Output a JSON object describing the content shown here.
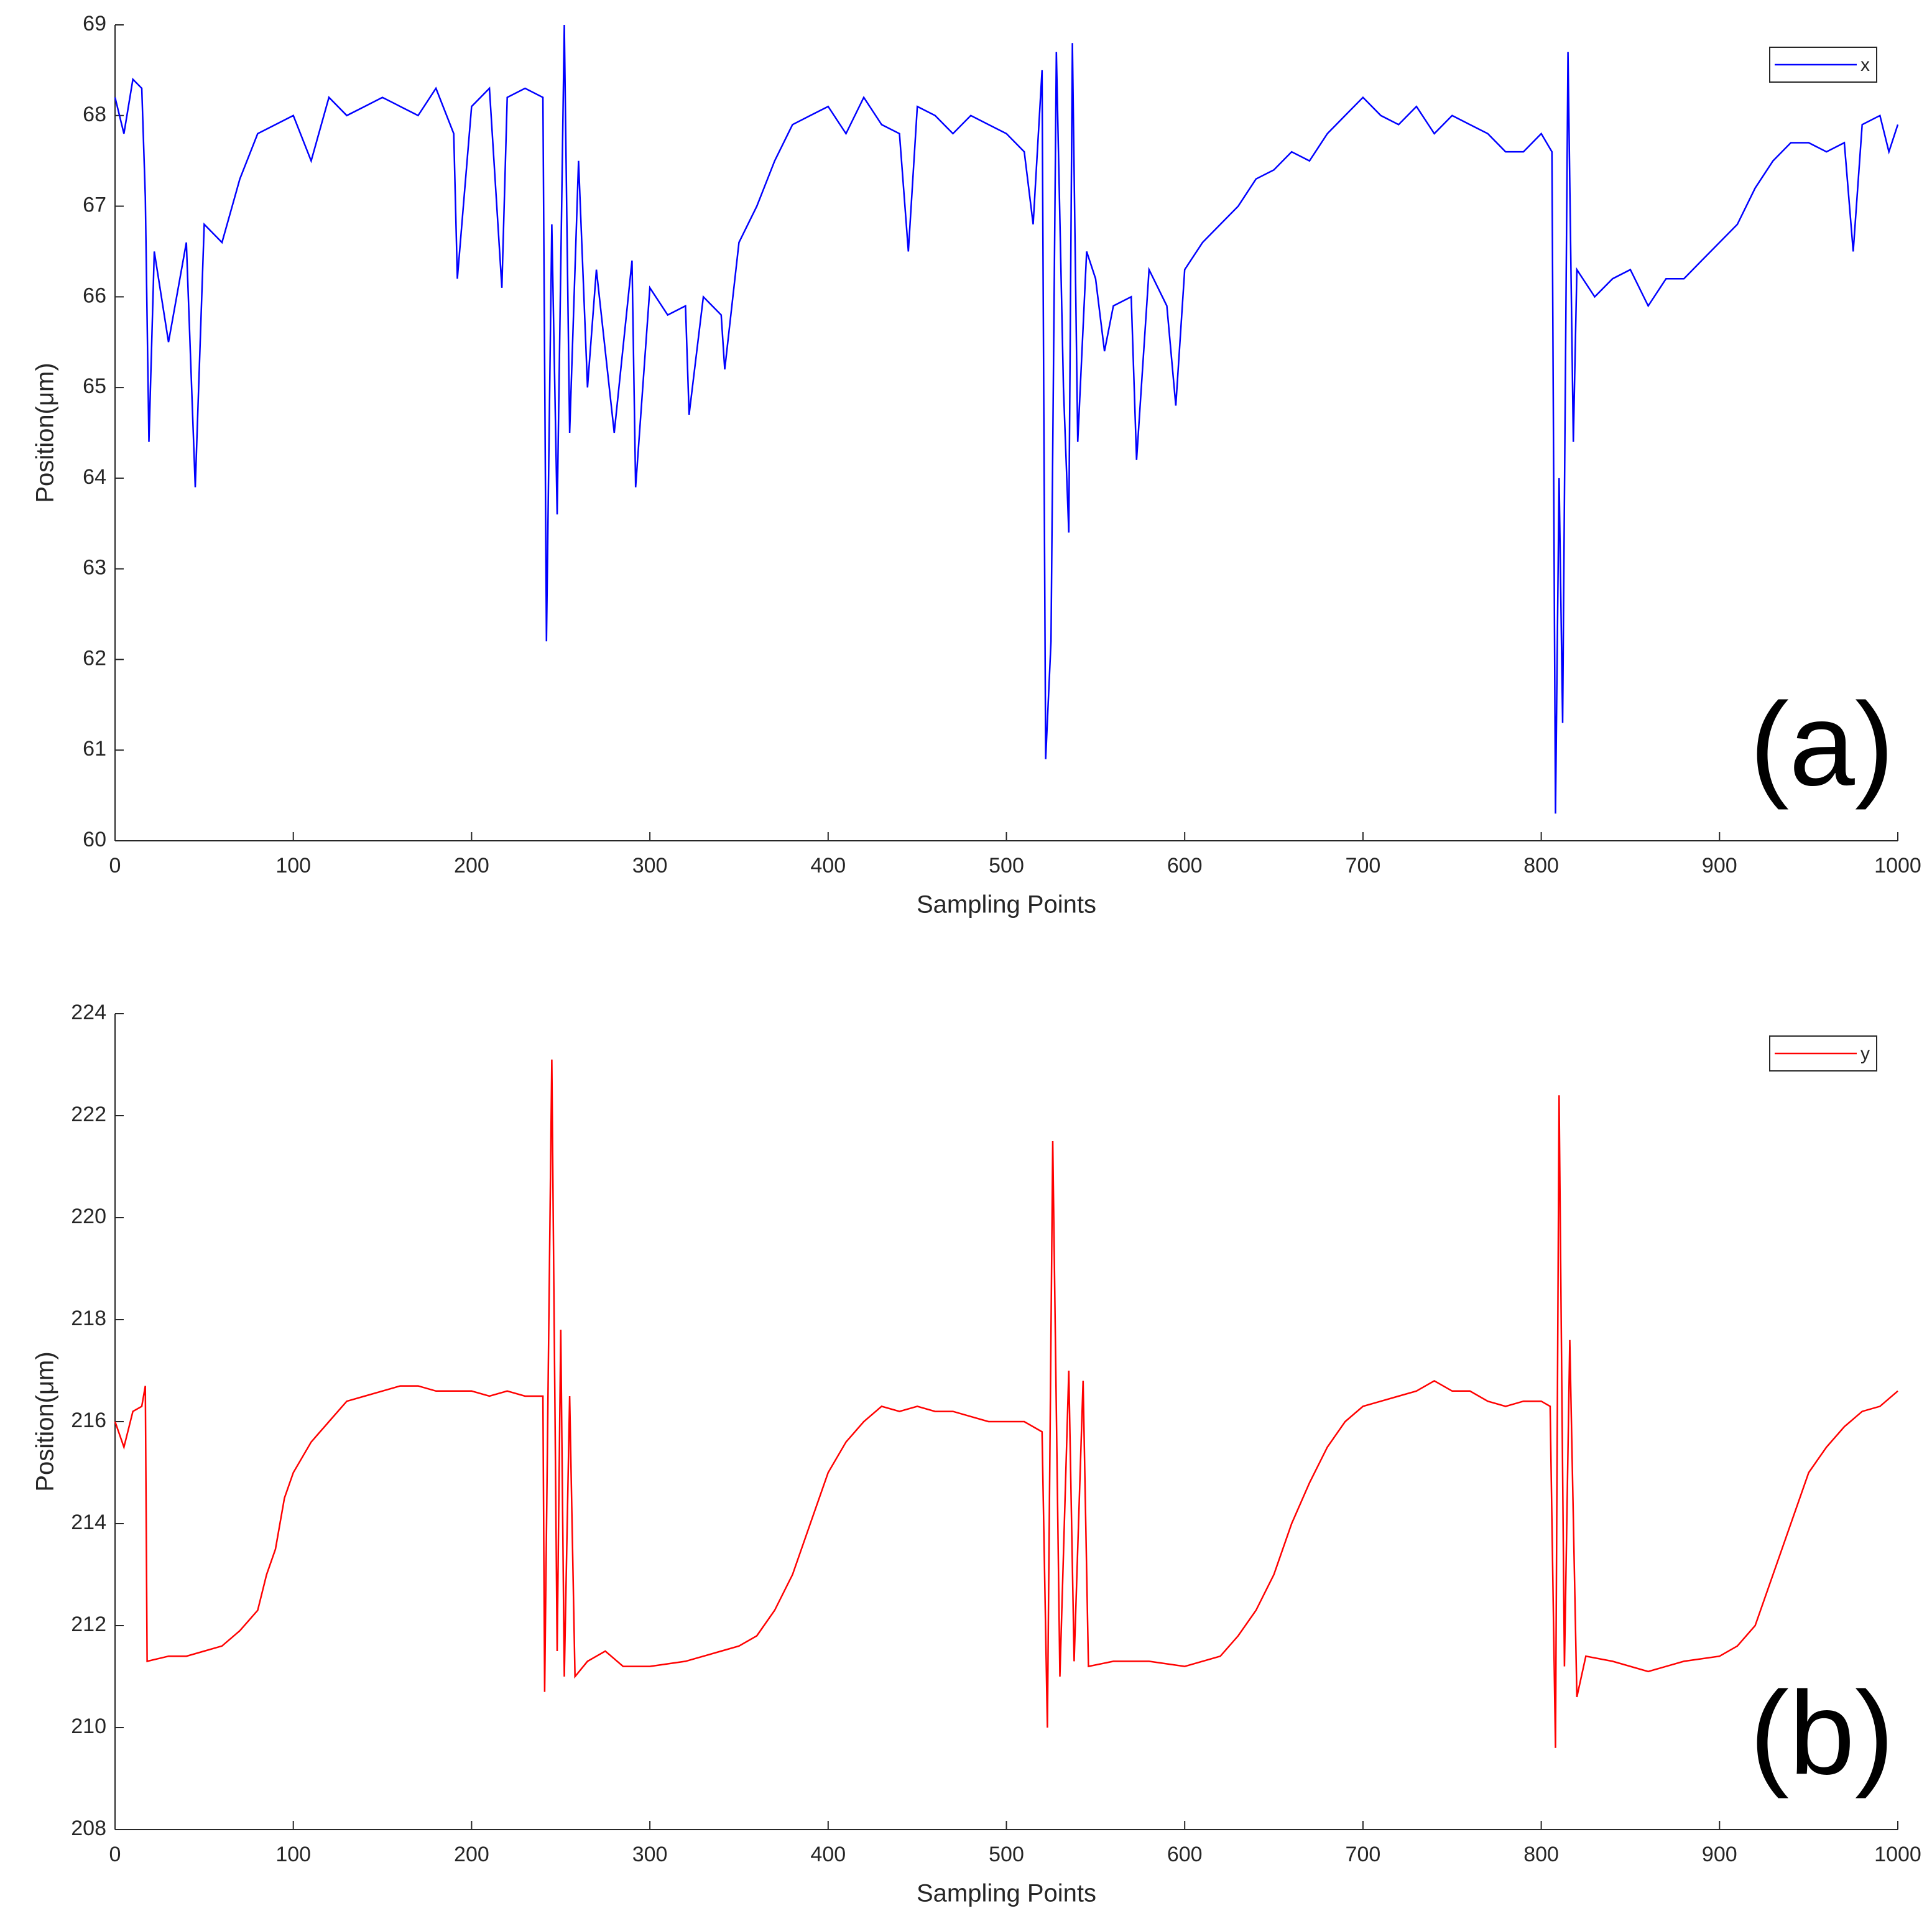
{
  "chart_data": [
    {
      "type": "line",
      "annotation": "(a)",
      "x_label": "Sampling Points",
      "y_label": "Position(μm)",
      "xlim": [
        0,
        1000
      ],
      "xticks": [
        0,
        100,
        200,
        300,
        400,
        500,
        600,
        700,
        800,
        900,
        1000
      ],
      "ylim": [
        60,
        69
      ],
      "yticks": [
        60,
        61,
        62,
        63,
        64,
        65,
        66,
        67,
        68,
        69
      ],
      "legend": "upper right",
      "x": [
        0,
        5,
        10,
        15,
        17,
        19,
        22,
        30,
        40,
        45,
        50,
        60,
        70,
        80,
        90,
        100,
        110,
        120,
        130,
        140,
        150,
        160,
        170,
        180,
        190,
        192,
        200,
        210,
        217,
        220,
        230,
        240,
        242,
        245,
        248,
        252,
        255,
        260,
        265,
        270,
        280,
        290,
        292,
        300,
        310,
        320,
        322,
        330,
        340,
        342,
        350,
        360,
        370,
        380,
        390,
        400,
        410,
        420,
        430,
        440,
        445,
        450,
        460,
        470,
        480,
        490,
        500,
        510,
        515,
        520,
        522,
        525,
        528,
        532,
        535,
        537,
        540,
        545,
        550,
        555,
        560,
        570,
        573,
        580,
        590,
        595,
        600,
        610,
        620,
        630,
        640,
        650,
        660,
        670,
        680,
        690,
        700,
        710,
        720,
        730,
        740,
        750,
        760,
        770,
        780,
        790,
        800,
        806,
        808,
        810,
        812,
        815,
        818,
        820,
        830,
        840,
        850,
        860,
        870,
        880,
        890,
        900,
        910,
        920,
        930,
        940,
        950,
        960,
        970,
        975,
        980,
        990,
        995,
        1000
      ],
      "series": [
        {
          "name": "x",
          "color": "#0000ff",
          "values": [
            68.2,
            67.8,
            68.4,
            68.3,
            67.1,
            64.4,
            66.5,
            65.5,
            66.6,
            63.9,
            66.8,
            66.6,
            67.3,
            67.8,
            67.9,
            68.0,
            67.5,
            68.2,
            68.0,
            68.1,
            68.2,
            68.1,
            68.0,
            68.3,
            67.8,
            66.2,
            68.1,
            68.3,
            66.1,
            68.2,
            68.3,
            68.2,
            62.2,
            66.8,
            63.6,
            69.0,
            64.5,
            67.5,
            65.0,
            66.3,
            64.5,
            66.4,
            63.9,
            66.1,
            65.8,
            65.9,
            64.7,
            66.0,
            65.8,
            65.2,
            66.6,
            67.0,
            67.5,
            67.9,
            68.0,
            68.1,
            67.8,
            68.2,
            67.9,
            67.8,
            66.5,
            68.1,
            68.0,
            67.8,
            68.0,
            67.9,
            67.8,
            67.6,
            66.8,
            68.5,
            60.9,
            62.2,
            68.7,
            65.0,
            63.4,
            68.8,
            64.4,
            66.5,
            66.2,
            65.4,
            65.9,
            66.0,
            64.2,
            66.3,
            65.9,
            64.8,
            66.3,
            66.6,
            66.8,
            67.0,
            67.3,
            67.4,
            67.6,
            67.5,
            67.8,
            68.0,
            68.2,
            68.0,
            67.9,
            68.1,
            67.8,
            68.0,
            67.9,
            67.8,
            67.6,
            67.6,
            67.8,
            67.6,
            60.3,
            64.0,
            61.3,
            68.7,
            64.4,
            66.3,
            66.0,
            66.2,
            66.3,
            65.9,
            66.2,
            66.2,
            66.4,
            66.6,
            66.8,
            67.2,
            67.5,
            67.7,
            67.7,
            67.6,
            67.7,
            66.5,
            67.9,
            68.0,
            67.6,
            67.9
          ]
        }
      ]
    },
    {
      "type": "line",
      "annotation": "(b)",
      "x_label": "Sampling Points",
      "y_label": "Position(μm)",
      "xlim": [
        0,
        1000
      ],
      "xticks": [
        0,
        100,
        200,
        300,
        400,
        500,
        600,
        700,
        800,
        900,
        1000
      ],
      "ylim": [
        208,
        224
      ],
      "yticks": [
        208,
        210,
        212,
        214,
        216,
        218,
        220,
        222,
        224
      ],
      "legend": "upper right",
      "x": [
        0,
        5,
        10,
        15,
        17,
        18,
        30,
        40,
        50,
        60,
        70,
        80,
        85,
        90,
        95,
        100,
        110,
        120,
        130,
        140,
        150,
        160,
        170,
        180,
        190,
        200,
        210,
        220,
        230,
        240,
        241,
        245,
        248,
        250,
        252,
        255,
        258,
        265,
        275,
        285,
        300,
        320,
        340,
        350,
        360,
        370,
        380,
        390,
        400,
        410,
        420,
        430,
        440,
        450,
        460,
        470,
        480,
        490,
        500,
        510,
        520,
        523,
        526,
        530,
        535,
        538,
        543,
        546,
        560,
        580,
        600,
        620,
        630,
        640,
        650,
        660,
        670,
        680,
        690,
        700,
        710,
        720,
        730,
        740,
        750,
        760,
        770,
        780,
        790,
        800,
        805,
        808,
        810,
        813,
        816,
        820,
        825,
        840,
        860,
        880,
        900,
        910,
        920,
        930,
        940,
        950,
        960,
        970,
        980,
        990,
        1000
      ],
      "series": [
        {
          "name": "y",
          "color": "#ff0000",
          "values": [
            216.0,
            215.5,
            216.2,
            216.3,
            216.7,
            211.3,
            211.4,
            211.4,
            211.5,
            211.6,
            211.9,
            212.3,
            213.0,
            213.5,
            214.5,
            215.0,
            215.6,
            216.0,
            216.4,
            216.5,
            216.6,
            216.7,
            216.7,
            216.6,
            216.6,
            216.6,
            216.5,
            216.6,
            216.5,
            216.5,
            210.7,
            223.1,
            211.5,
            217.8,
            211.0,
            216.5,
            211.0,
            211.3,
            211.5,
            211.2,
            211.2,
            211.3,
            211.5,
            211.6,
            211.8,
            212.3,
            213.0,
            214.0,
            215.0,
            215.6,
            216.0,
            216.3,
            216.2,
            216.3,
            216.2,
            216.2,
            216.1,
            216.0,
            216.0,
            216.0,
            215.8,
            210.0,
            221.5,
            211.0,
            217.0,
            211.3,
            216.8,
            211.2,
            211.3,
            211.3,
            211.2,
            211.4,
            211.8,
            212.3,
            213.0,
            214.0,
            214.8,
            215.5,
            216.0,
            216.3,
            216.4,
            216.5,
            216.6,
            216.8,
            216.6,
            216.6,
            216.4,
            216.3,
            216.4,
            216.4,
            216.3,
            209.6,
            222.4,
            211.2,
            217.6,
            210.6,
            211.4,
            211.3,
            211.1,
            211.3,
            211.4,
            211.6,
            212.0,
            213.0,
            214.0,
            215.0,
            215.5,
            215.9,
            216.2,
            216.3,
            216.6
          ]
        }
      ]
    }
  ]
}
